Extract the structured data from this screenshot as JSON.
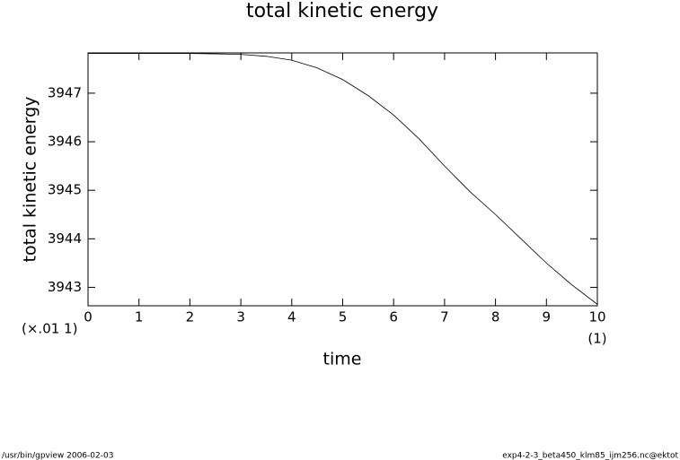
{
  "chart_data": {
    "type": "line",
    "title": "total kinetic energy",
    "x_label": "time",
    "y_label": "total kinetic energy",
    "annotations": [
      "(×.01 1)",
      "(1)"
    ],
    "footer_left": "/usr/bin/gpview   2006-02-03",
    "footer_right": "exp4-2-3_beta450_klm85_ijm256.nc@ektot",
    "x": [
      0,
      1,
      2,
      2.5,
      3,
      3.5,
      4,
      4.5,
      5,
      5.5,
      6,
      6.5,
      7,
      7.5,
      8,
      8.5,
      9,
      9.5,
      10
    ],
    "series": [
      {
        "name": "total kinetic energy",
        "color": "#000000",
        "values": [
          3947.82,
          3947.82,
          3947.82,
          3947.81,
          3947.8,
          3947.76,
          3947.68,
          3947.52,
          3947.28,
          3946.95,
          3946.55,
          3946.06,
          3945.5,
          3944.97,
          3944.5,
          3944.0,
          3943.5,
          3943.05,
          3942.65
        ]
      }
    ],
    "xlim": [
      0,
      10
    ],
    "xticks": [
      0,
      1,
      2,
      3,
      4,
      5,
      6,
      7,
      8,
      9,
      10
    ],
    "ylim": [
      3942.62,
      3947.83
    ],
    "yticks": [
      3943,
      3944,
      3945,
      3946,
      3947
    ],
    "grid": false
  }
}
